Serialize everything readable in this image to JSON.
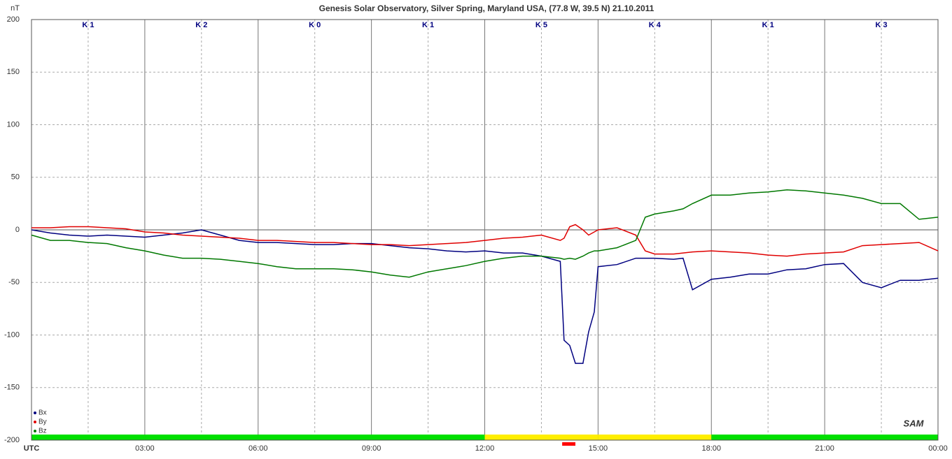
{
  "chart_data": {
    "type": "line",
    "title": "Genesis Solar Observatory, Silver Spring, Maryland USA, (77.8 W, 39.5 N)  21.10.2011",
    "y_label": "nT",
    "watermark": "SAM",
    "x": [
      0,
      0.5,
      1,
      1.5,
      2,
      2.5,
      3,
      3.5,
      4,
      4.5,
      5,
      5.5,
      6,
      6.5,
      7,
      7.5,
      8,
      8.5,
      9,
      9.5,
      10,
      10.5,
      11,
      11.5,
      12,
      12.5,
      13,
      13.5,
      14,
      14.1,
      14.25,
      14.4,
      14.6,
      14.75,
      14.9,
      15,
      15.5,
      16,
      16.25,
      16.5,
      17,
      17.25,
      17.5,
      18,
      18.5,
      19,
      19.5,
      20,
      20.5,
      21,
      21.5,
      22,
      22.5,
      23,
      23.5,
      24
    ],
    "series": [
      {
        "name": "Bx",
        "color": "#000080",
        "values": [
          0,
          -3,
          -5,
          -6,
          -5,
          -6,
          -7,
          -5,
          -3,
          0,
          -5,
          -10,
          -12,
          -12,
          -13,
          -14,
          -14,
          -13,
          -13,
          -15,
          -17,
          -18,
          -20,
          -21,
          -20,
          -22,
          -22,
          -25,
          -30,
          -105,
          -110,
          -127,
          -127,
          -97,
          -78,
          -35,
          -33,
          -27,
          -27,
          -27,
          -28,
          -27,
          -57,
          -47,
          -45,
          -42,
          -42,
          -38,
          -37,
          -33,
          -32,
          -50,
          -55,
          -48,
          -48,
          -46
        ]
      },
      {
        "name": "By",
        "color": "#e00000",
        "values": [
          2,
          2,
          3,
          3,
          2,
          1,
          -2,
          -3,
          -5,
          -6,
          -7,
          -8,
          -10,
          -10,
          -11,
          -12,
          -12,
          -13,
          -14,
          -14,
          -15,
          -14,
          -13,
          -12,
          -10,
          -8,
          -7,
          -5,
          -10,
          -8,
          3,
          5,
          0,
          -5,
          -2,
          0,
          2,
          -5,
          -20,
          -23,
          -23,
          -22,
          -21,
          -20,
          -21,
          -22,
          -24,
          -25,
          -23,
          -22,
          -21,
          -15,
          -14,
          -13,
          -12,
          -20
        ]
      },
      {
        "name": "Bz",
        "color": "#007800",
        "values": [
          -5,
          -10,
          -10,
          -12,
          -13,
          -17,
          -20,
          -24,
          -27,
          -27,
          -28,
          -30,
          -32,
          -35,
          -37,
          -37,
          -37,
          -38,
          -40,
          -43,
          -45,
          -40,
          -37,
          -34,
          -30,
          -27,
          -25,
          -25,
          -27,
          -28,
          -27,
          -28,
          -25,
          -22,
          -20,
          -20,
          -17,
          -10,
          12,
          15,
          18,
          20,
          25,
          33,
          33,
          35,
          36,
          38,
          37,
          35,
          33,
          30,
          25,
          25,
          10,
          12
        ]
      }
    ],
    "xlim": [
      0,
      24
    ],
    "xticks": [
      {
        "value": 0,
        "label": "UTC"
      },
      {
        "value": 3,
        "label": "03:00"
      },
      {
        "value": 6,
        "label": "06:00"
      },
      {
        "value": 9,
        "label": "09:00"
      },
      {
        "value": 12,
        "label": "12:00"
      },
      {
        "value": 15,
        "label": "15:00"
      },
      {
        "value": 18,
        "label": "18:00"
      },
      {
        "value": 21,
        "label": "21:00"
      },
      {
        "value": 24,
        "label": "00:00"
      }
    ],
    "ylim": [
      -200,
      200
    ],
    "yticks": [
      -200,
      -150,
      -100,
      -50,
      0,
      50,
      100,
      150,
      200
    ],
    "grid": true,
    "legend": "lower left",
    "k_index": {
      "labels": [
        "K 1",
        "K 2",
        "K 0",
        "K 1",
        "K 5",
        "K 4",
        "K 1",
        "K 3"
      ],
      "colors": [
        "#00e000",
        "#00e000",
        "#00e000",
        "#00e000",
        "#ffee00",
        "#ffee00",
        "#00e000",
        "#00e000"
      ]
    },
    "alert_marker": {
      "x": [
        14.05,
        14.4
      ],
      "color": "#ff0000"
    }
  }
}
